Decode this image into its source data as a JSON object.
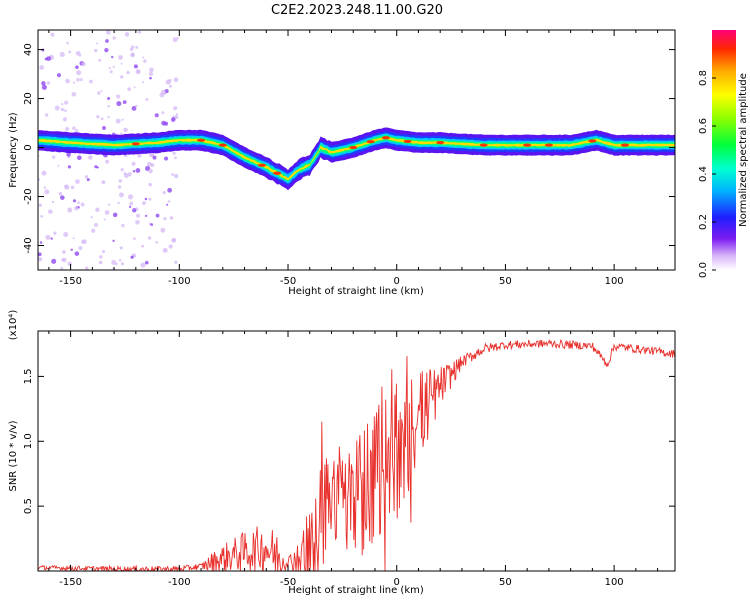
{
  "title": "C2E2.2023.248.11.00.G20",
  "chart_data": [
    {
      "type": "heatmap",
      "xlabel": "Height of straight line (km)",
      "ylabel": "Frequency (Hz)",
      "xlim": [
        -165,
        128
      ],
      "ylim": [
        -50,
        48
      ],
      "xticks": [
        -150,
        -100,
        -50,
        0,
        50,
        100
      ],
      "yticks": [
        -40,
        -20,
        0,
        20,
        40
      ],
      "grid": false,
      "colorbar": {
        "label": "Normalized spectral amplitude",
        "range": [
          0.0,
          1.0
        ],
        "ticks": [
          0.0,
          0.2,
          0.4,
          0.6,
          0.8
        ],
        "tick_labels": [
          "0.0",
          "0.2",
          "0.4",
          "0.6",
          "0.8"
        ],
        "colormap": "rainbow"
      },
      "ridge": {
        "x": [
          -165,
          -150,
          -130,
          -110,
          -100,
          -90,
          -80,
          -70,
          -60,
          -50,
          -45,
          -40,
          -37,
          -35,
          -30,
          -20,
          -10,
          -5,
          0,
          10,
          20,
          40,
          60,
          80,
          92,
          100,
          110,
          128
        ],
        "y": [
          3,
          2,
          1,
          2,
          3,
          3,
          1,
          -4,
          -8,
          -13,
          -9,
          -7,
          -3,
          0,
          -2,
          0,
          3,
          4,
          3,
          2,
          2,
          1,
          1,
          1,
          3,
          1,
          1,
          1
        ]
      }
    },
    {
      "type": "line",
      "xlabel": "Height of straight line (km)",
      "ylabel": "SNR (10 * v/v)",
      "multiplier_label": "(x10⁴)",
      "xlim": [
        -165,
        128
      ],
      "ylim": [
        0,
        1.85
      ],
      "xticks": [
        -150,
        -100,
        -50,
        0,
        50,
        100
      ],
      "yticks": [
        0.5,
        1.0,
        1.5
      ],
      "ytick_labels": [
        "0.5",
        "1.0",
        "1.5"
      ],
      "grid": false,
      "color": "#e8302c",
      "envelope": {
        "x": [
          -165,
          -130,
          -100,
          -90,
          -85,
          -80,
          -70,
          -60,
          -55,
          -50,
          -40,
          -35,
          -30,
          -25,
          -20,
          -10,
          -5,
          0,
          5,
          10,
          20,
          30,
          40,
          50,
          70,
          90,
          97,
          100,
          110,
          128
        ],
        "y": [
          0.03,
          0.02,
          0.02,
          0.04,
          0.08,
          0.12,
          0.18,
          0.22,
          0.15,
          0.08,
          0.2,
          0.5,
          0.7,
          0.7,
          0.75,
          0.85,
          0.95,
          1.0,
          1.1,
          1.25,
          1.45,
          1.62,
          1.72,
          1.75,
          1.76,
          1.74,
          1.6,
          1.74,
          1.72,
          1.68
        ]
      },
      "noise": {
        "x": [
          -165,
          -90,
          -85,
          -70,
          -55,
          -50,
          -45,
          -40,
          -30,
          -20,
          -10,
          0,
          10,
          20,
          30,
          50,
          128
        ],
        "amplitude": [
          0.02,
          0.03,
          0.1,
          0.2,
          0.25,
          0.05,
          0.2,
          0.55,
          0.55,
          0.6,
          0.7,
          0.7,
          0.5,
          0.2,
          0.06,
          0.04,
          0.04
        ]
      }
    }
  ]
}
